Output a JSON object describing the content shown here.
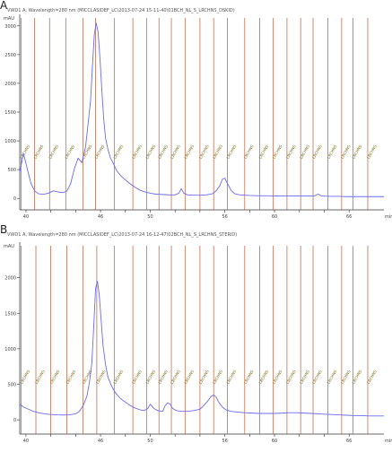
{
  "chart_data": [
    {
      "panel_letter": "A",
      "type": "line",
      "title": "VWD1 A, Wavelength=280 nm (MICCLASIDEF_LC\\2013-07-24 15-11-40\\01BCH_NL_S_LRCHNS_DSKID)",
      "ylabel": "mAU",
      "xlabel": "",
      "x_unit": "min",
      "xlim": [
        39.5,
        68.8
      ],
      "ylim": [
        -200,
        3200
      ],
      "x_ticks": [
        40,
        42,
        44,
        46,
        48,
        50,
        52,
        54,
        56,
        58,
        60,
        62,
        64,
        66
      ],
      "y_ticks": [
        0,
        500,
        1000,
        1500,
        2000,
        2500,
        3000
      ],
      "x_tick_labels": [
        "40",
        "",
        "",
        "46",
        "",
        "50",
        "",
        "",
        "56",
        "",
        "60",
        "",
        "",
        "66"
      ],
      "y_tick_labels": [
        "0",
        "500",
        "1000",
        "1500",
        "2000",
        "2500",
        "3000"
      ],
      "marker_color": "#b85a3a",
      "series_color": "#6b6bf0",
      "markers": [
        {
          "x": 39.6,
          "label": "LRCHNS"
        },
        {
          "x": 40.7,
          "label": "LRCHNS"
        },
        {
          "x": 41.9,
          "label": "LRCHNS"
        },
        {
          "x": 43.2,
          "label": "LRCHNS"
        },
        {
          "x": 44.6,
          "label": "LRCHNS"
        },
        {
          "x": 45.6,
          "label": "LRCHNS"
        },
        {
          "x": 47.1,
          "label": "LRCHNS"
        },
        {
          "x": 48.6,
          "label": "LRCHNS"
        },
        {
          "x": 49.7,
          "label": "LRCHNS"
        },
        {
          "x": 50.7,
          "label": "LRCHNS"
        },
        {
          "x": 51.7,
          "label": "LRCHNS"
        },
        {
          "x": 52.8,
          "label": "LRCHNS"
        },
        {
          "x": 54.0,
          "label": "LRCHNS"
        },
        {
          "x": 55.1,
          "label": "LRCHNS"
        },
        {
          "x": 56.2,
          "label": "LRCHNS"
        },
        {
          "x": 57.6,
          "label": "LRCHNS"
        },
        {
          "x": 58.8,
          "label": "LRCHNS"
        },
        {
          "x": 59.9,
          "label": "LRCHNS"
        },
        {
          "x": 61.0,
          "label": "LRCHNS"
        },
        {
          "x": 62.1,
          "label": "LRCHNS"
        },
        {
          "x": 63.1,
          "label": "LRCHNS"
        },
        {
          "x": 64.3,
          "label": "LRCHNS"
        },
        {
          "x": 65.4,
          "label": "LRCHNS"
        },
        {
          "x": 66.3,
          "label": "LRCHNS"
        },
        {
          "x": 67.5,
          "label": "LRCHNS"
        }
      ],
      "series": [
        {
          "x": [
            39.5,
            39.8,
            40.1,
            40.4,
            40.7,
            41.0,
            41.4,
            41.8,
            42.2,
            42.6,
            43.0,
            43.3,
            43.6,
            43.9,
            44.2,
            44.5,
            44.8,
            45.0,
            45.2,
            45.35,
            45.5,
            45.65,
            45.8,
            45.95,
            46.1,
            46.25,
            46.4,
            46.6,
            46.8,
            47.0,
            47.3,
            47.6,
            48.0,
            48.4,
            48.8,
            49.2,
            49.6,
            50.0,
            50.4,
            50.8,
            51.2,
            51.6,
            52.0,
            52.3,
            52.5,
            52.7,
            53.0,
            53.5,
            54.0,
            54.5,
            55.0,
            55.3,
            55.6,
            55.8,
            56.0,
            56.2,
            56.5,
            56.8,
            57.2,
            58.0,
            58.8,
            59.5,
            60.2,
            61.0,
            61.8,
            62.5,
            63.2,
            63.5,
            63.8,
            64.5,
            65.2,
            66.0,
            66.8,
            67.5,
            68.2,
            68.8
          ],
          "y": [
            450,
            780,
            520,
            260,
            130,
            80,
            70,
            90,
            130,
            110,
            100,
            130,
            260,
            520,
            700,
            620,
            900,
            1300,
            1700,
            2300,
            2850,
            3050,
            2900,
            2450,
            1900,
            1400,
            1050,
            850,
            700,
            620,
            480,
            400,
            320,
            250,
            190,
            140,
            110,
            90,
            75,
            70,
            65,
            60,
            60,
            90,
            170,
            90,
            60,
            55,
            55,
            60,
            80,
            130,
            220,
            330,
            350,
            260,
            140,
            80,
            60,
            50,
            45,
            45,
            40,
            40,
            40,
            40,
            40,
            75,
            40,
            35,
            35,
            30,
            30,
            30,
            30,
            30
          ]
        }
      ]
    },
    {
      "panel_letter": "B",
      "type": "line",
      "title": "VWD1 A, Wavelength=280 nm (MICCLASIDEF_LC\\2013-07-24 16-12-47\\02BCH_NL_S_LRCHNS_STERID)",
      "ylabel": "mAU",
      "xlabel": "",
      "x_unit": "min",
      "xlim": [
        39.5,
        68.8
      ],
      "ylim": [
        -200,
        2500
      ],
      "x_ticks": [
        40,
        42,
        44,
        46,
        48,
        50,
        52,
        54,
        56,
        58,
        60,
        62,
        64,
        66
      ],
      "y_ticks": [
        0,
        500,
        1000,
        1500,
        2000
      ],
      "x_tick_labels": [
        "40",
        "",
        "",
        "46",
        "",
        "50",
        "",
        "",
        "56",
        "",
        "60",
        "",
        "",
        "66"
      ],
      "y_tick_labels": [
        "0",
        "500",
        "1000",
        "1500",
        "2000"
      ],
      "marker_color": "#b85a3a",
      "series_color": "#6b6bf0",
      "markers": [
        {
          "x": 39.6,
          "label": "LRCHNS"
        },
        {
          "x": 40.8,
          "label": "LRCHNS"
        },
        {
          "x": 42.0,
          "label": "LRCHNS"
        },
        {
          "x": 43.3,
          "label": "LRCHNS"
        },
        {
          "x": 44.6,
          "label": "LRCHNS"
        },
        {
          "x": 45.7,
          "label": "LRCHNS"
        },
        {
          "x": 47.1,
          "label": "LRCHNS"
        },
        {
          "x": 48.6,
          "label": "LRCHNS"
        },
        {
          "x": 49.7,
          "label": "LRCHNS"
        },
        {
          "x": 50.7,
          "label": "LRCHNS"
        },
        {
          "x": 51.7,
          "label": "LRCHNS"
        },
        {
          "x": 52.8,
          "label": "LRCHNS"
        },
        {
          "x": 54.0,
          "label": "LRCHNS"
        },
        {
          "x": 55.1,
          "label": "LRCHNS"
        },
        {
          "x": 56.2,
          "label": "LRCHNS"
        },
        {
          "x": 57.6,
          "label": "LRCHNS"
        },
        {
          "x": 58.8,
          "label": "LRCHNS"
        },
        {
          "x": 59.9,
          "label": "LRCHNS"
        },
        {
          "x": 61.0,
          "label": "LRCHNS"
        },
        {
          "x": 62.1,
          "label": "LRCHNS"
        },
        {
          "x": 63.1,
          "label": "LRCHNS"
        },
        {
          "x": 64.3,
          "label": "LRCHNS"
        },
        {
          "x": 65.4,
          "label": "LRCHNS"
        },
        {
          "x": 66.3,
          "label": "LRCHNS"
        },
        {
          "x": 67.5,
          "label": "LRCHNS"
        }
      ],
      "series": [
        {
          "x": [
            39.5,
            39.8,
            40.2,
            40.6,
            41.0,
            41.5,
            42.0,
            42.5,
            43.0,
            43.5,
            44.0,
            44.3,
            44.6,
            44.9,
            45.1,
            45.3,
            45.45,
            45.6,
            45.75,
            45.9,
            46.05,
            46.2,
            46.4,
            46.6,
            46.9,
            47.2,
            47.6,
            48.0,
            48.4,
            48.8,
            49.2,
            49.5,
            49.8,
            50.0,
            50.3,
            50.6,
            51.0,
            51.2,
            51.4,
            51.6,
            51.8,
            52.1,
            52.5,
            53.0,
            53.5,
            54.0,
            54.3,
            54.6,
            54.9,
            55.1,
            55.3,
            55.5,
            55.8,
            56.1,
            56.5,
            57.0,
            57.6,
            58.2,
            58.8,
            59.4,
            60.0,
            60.6,
            61.2,
            61.8,
            62.4,
            63.0,
            63.5,
            64.0,
            64.6,
            65.2,
            65.8,
            66.4,
            67.0,
            67.6,
            68.2,
            68.8
          ],
          "y": [
            220,
            180,
            150,
            120,
            100,
            85,
            75,
            70,
            68,
            70,
            85,
            120,
            200,
            330,
            520,
            800,
            1300,
            1850,
            1950,
            1750,
            1400,
            1050,
            780,
            600,
            470,
            380,
            300,
            250,
            200,
            165,
            140,
            130,
            160,
            220,
            160,
            130,
            120,
            200,
            240,
            220,
            160,
            130,
            120,
            120,
            130,
            150,
            200,
            260,
            330,
            350,
            320,
            250,
            180,
            140,
            120,
            110,
            100,
            95,
            90,
            90,
            90,
            95,
            100,
            100,
            95,
            90,
            85,
            80,
            75,
            70,
            65,
            60,
            60,
            55,
            55,
            55
          ]
        }
      ]
    }
  ]
}
